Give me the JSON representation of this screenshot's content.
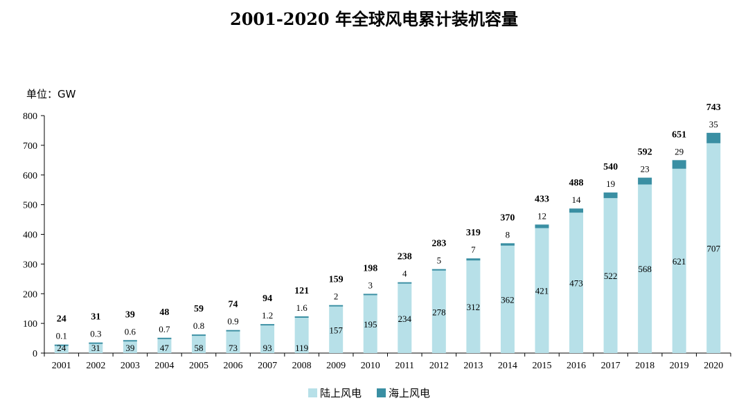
{
  "title": "2001-2020 年全球风电累计装机容量",
  "unit_label": "单位：GW",
  "colors": {
    "onshore": "#b7e0e8",
    "offshore": "#3a8fa3",
    "axis": "#000000"
  },
  "chart_data": {
    "type": "bar",
    "stacked": true,
    "title": "2001-2020 年全球风电累计装机容量",
    "ylabel": "单位：GW",
    "xlabel": "",
    "ylim": [
      0,
      800
    ],
    "yticks": [
      0,
      100,
      200,
      300,
      400,
      500,
      600,
      700,
      800
    ],
    "grid": false,
    "legend_position": "bottom",
    "categories": [
      "2001",
      "2002",
      "2003",
      "2004",
      "2005",
      "2006",
      "2007",
      "2008",
      "2009",
      "2010",
      "2011",
      "2012",
      "2013",
      "2014",
      "2015",
      "2016",
      "2017",
      "2018",
      "2019",
      "2020"
    ],
    "series": [
      {
        "name": "陆上风电",
        "values": [
          24,
          31,
          39,
          47,
          58,
          73,
          93,
          119,
          157,
          195,
          234,
          278,
          312,
          362,
          421,
          473,
          522,
          568,
          621,
          707
        ]
      },
      {
        "name": "海上风电",
        "values": [
          "0.1",
          "0.3",
          "0.6",
          "0.7",
          "0.8",
          "0.9",
          "1.2",
          "1.6",
          "2",
          "3",
          "4",
          "5",
          "7",
          "8",
          "12",
          "14",
          "19",
          "23",
          "29",
          "35"
        ]
      }
    ],
    "totals": [
      24,
      31,
      39,
      48,
      59,
      74,
      94,
      121,
      159,
      198,
      238,
      283,
      319,
      370,
      433,
      488,
      540,
      592,
      651,
      743
    ]
  }
}
